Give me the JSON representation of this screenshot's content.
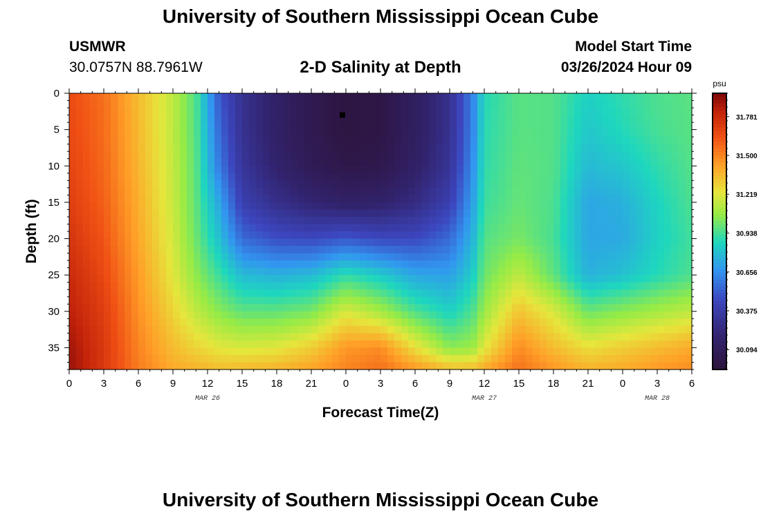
{
  "page": {
    "title_top": "University of Southern Mississippi Ocean Cube",
    "title_bottom": "University of Southern Mississippi Ocean Cube",
    "station_name": "USMWR",
    "station_coords": "30.0757N  88.7961W",
    "model_start_label": "Model Start Time",
    "model_start_value": "03/26/2024 Hour 09"
  },
  "chart_data": {
    "type": "heatmap",
    "title": "2-D Salinity at Depth",
    "xlabel": "Forecast Time(Z)",
    "ylabel": "Depth (ft)",
    "x_tick_labels": [
      "0",
      "3",
      "6",
      "9",
      "12",
      "15",
      "18",
      "21",
      "0",
      "3",
      "6",
      "9",
      "12",
      "15",
      "18",
      "21",
      "0",
      "3",
      "6"
    ],
    "x_range_hours": [
      0,
      54
    ],
    "date_labels": [
      {
        "label": "MAR 26",
        "hour": 12
      },
      {
        "label": "MAR 27",
        "hour": 36
      },
      {
        "label": "MAR 28",
        "hour": 51
      }
    ],
    "y_ticks": [
      0,
      5,
      10,
      15,
      20,
      25,
      30,
      35
    ],
    "ylim": [
      0,
      38
    ],
    "y_inverted": true,
    "colorbar": {
      "unit": "psu",
      "ticks": [
        "31.781",
        "31.500",
        "31.219",
        "30.938",
        "30.656",
        "30.375",
        "30.094"
      ],
      "min": 29.95,
      "max": 31.95
    },
    "marker": {
      "hour": 23.7,
      "depth_ft": 3
    },
    "profile_depths_ft": [
      0,
      5,
      10,
      15,
      20,
      25,
      30,
      35,
      38
    ],
    "salinity_profiles": [
      {
        "hour": 0,
        "values": [
          31.65,
          31.66,
          31.68,
          31.7,
          31.74,
          31.78,
          31.82,
          31.88,
          31.9
        ]
      },
      {
        "hour": 3,
        "values": [
          31.55,
          31.56,
          31.57,
          31.59,
          31.62,
          31.66,
          31.7,
          31.72,
          31.72
        ]
      },
      {
        "hour": 6,
        "values": [
          31.35,
          31.36,
          31.37,
          31.39,
          31.41,
          31.44,
          31.47,
          31.5,
          31.52
        ]
      },
      {
        "hour": 9,
        "values": [
          31.15,
          31.15,
          31.16,
          31.17,
          31.19,
          31.22,
          31.28,
          31.35,
          31.4
        ]
      },
      {
        "hour": 11,
        "values": [
          30.95,
          30.96,
          30.97,
          30.98,
          31.0,
          31.06,
          31.15,
          31.28,
          31.38
        ]
      },
      {
        "hour": 13,
        "values": [
          30.5,
          30.55,
          30.6,
          30.72,
          30.8,
          30.92,
          31.05,
          31.22,
          31.35
        ]
      },
      {
        "hour": 15,
        "values": [
          30.3,
          30.3,
          30.33,
          30.4,
          30.55,
          30.78,
          30.98,
          31.2,
          31.36
        ]
      },
      {
        "hour": 18,
        "values": [
          30.15,
          30.15,
          30.18,
          30.28,
          30.47,
          30.75,
          30.98,
          31.22,
          31.38
        ]
      },
      {
        "hour": 21,
        "values": [
          30.05,
          30.05,
          30.07,
          30.2,
          30.45,
          30.78,
          31.02,
          31.3,
          31.42
        ]
      },
      {
        "hour": 24,
        "values": [
          29.98,
          29.98,
          30.02,
          30.15,
          30.5,
          30.9,
          31.2,
          31.45,
          31.5
        ]
      },
      {
        "hour": 27,
        "values": [
          30.0,
          30.0,
          30.03,
          30.17,
          30.45,
          30.83,
          31.1,
          31.48,
          31.55
        ]
      },
      {
        "hour": 30,
        "values": [
          30.12,
          30.12,
          30.15,
          30.25,
          30.45,
          30.72,
          30.95,
          31.25,
          31.45
        ]
      },
      {
        "hour": 33,
        "values": [
          30.3,
          30.3,
          30.32,
          30.4,
          30.55,
          30.7,
          30.85,
          31.05,
          31.35
        ]
      },
      {
        "hour": 35,
        "values": [
          30.62,
          30.62,
          30.65,
          30.7,
          30.76,
          30.84,
          30.95,
          31.08,
          31.35
        ]
      },
      {
        "hour": 36,
        "values": [
          30.88,
          30.89,
          30.9,
          30.92,
          30.96,
          31.0,
          31.08,
          31.22,
          31.4
        ]
      },
      {
        "hour": 39,
        "values": [
          30.97,
          30.97,
          30.98,
          30.99,
          31.02,
          31.15,
          31.33,
          31.48,
          31.55
        ]
      },
      {
        "hour": 42,
        "values": [
          30.96,
          30.96,
          30.96,
          30.95,
          30.94,
          30.98,
          31.2,
          31.35,
          31.45
        ]
      },
      {
        "hour": 45,
        "values": [
          30.85,
          30.82,
          30.78,
          30.72,
          30.72,
          30.75,
          31.0,
          31.25,
          31.38
        ]
      },
      {
        "hour": 48,
        "values": [
          30.9,
          30.88,
          30.82,
          30.75,
          30.73,
          30.8,
          31.05,
          31.3,
          31.4
        ]
      },
      {
        "hour": 51,
        "values": [
          30.95,
          30.94,
          30.9,
          30.86,
          30.85,
          30.88,
          31.1,
          31.35,
          31.45
        ]
      },
      {
        "hour": 54,
        "values": [
          30.97,
          30.97,
          30.96,
          30.95,
          30.93,
          30.95,
          31.15,
          31.4,
          31.48
        ]
      }
    ]
  }
}
